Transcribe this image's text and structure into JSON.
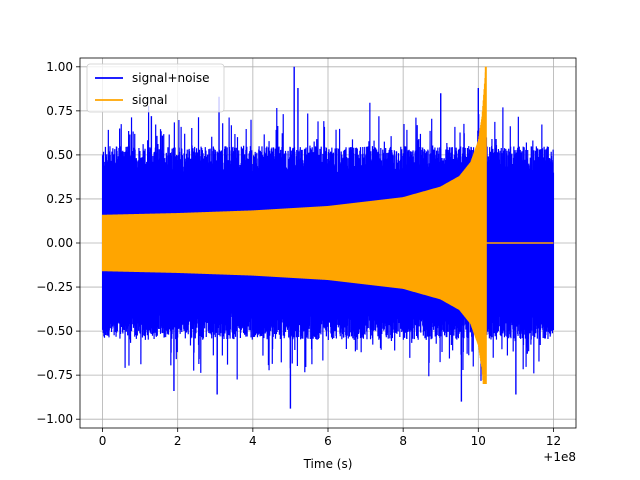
{
  "chart_data": {
    "type": "line",
    "title": "",
    "xlabel": "Time (s)",
    "ylabel": "",
    "x_offset_label": "+1e8",
    "xlim": [
      -0.6,
      12.6
    ],
    "ylim": [
      -1.05,
      1.05
    ],
    "x_ticks": [
      0,
      2,
      4,
      6,
      8,
      10,
      12
    ],
    "x_tick_labels": [
      "0",
      "2",
      "4",
      "6",
      "8",
      "10",
      "12"
    ],
    "y_ticks": [
      -1.0,
      -0.75,
      -0.5,
      -0.25,
      0.0,
      0.25,
      0.5,
      0.75,
      1.0
    ],
    "y_tick_labels": [
      "−1.00",
      "−0.75",
      "−0.50",
      "−0.25",
      "0.00",
      "0.25",
      "0.50",
      "0.75",
      "1.00"
    ],
    "grid": true,
    "legend_position": "top-left",
    "series": [
      {
        "name": "signal+noise",
        "color": "#0000ff",
        "x_range": [
          0,
          12
        ],
        "noise_envelope_upper": 0.55,
        "noise_envelope_lower": -0.55,
        "peak_max": 1.0,
        "peak_min": -0.94
      },
      {
        "name": "signal",
        "color": "#ffa500",
        "x_range": [
          0,
          12
        ],
        "chirp_envelope": [
          {
            "x": 0,
            "amp": 0.16
          },
          {
            "x": 2,
            "amp": 0.17
          },
          {
            "x": 4,
            "amp": 0.185
          },
          {
            "x": 6,
            "amp": 0.21
          },
          {
            "x": 8,
            "amp": 0.26
          },
          {
            "x": 9,
            "amp": 0.32
          },
          {
            "x": 9.5,
            "amp": 0.38
          },
          {
            "x": 9.8,
            "amp": 0.46
          },
          {
            "x": 10.0,
            "amp": 0.58
          },
          {
            "x": 10.1,
            "amp": 0.72
          },
          {
            "x": 10.2,
            "amp": 1.0
          }
        ],
        "merger_x": 10.2,
        "merger_min": -0.8,
        "post_merger_value": 0.0
      }
    ]
  }
}
